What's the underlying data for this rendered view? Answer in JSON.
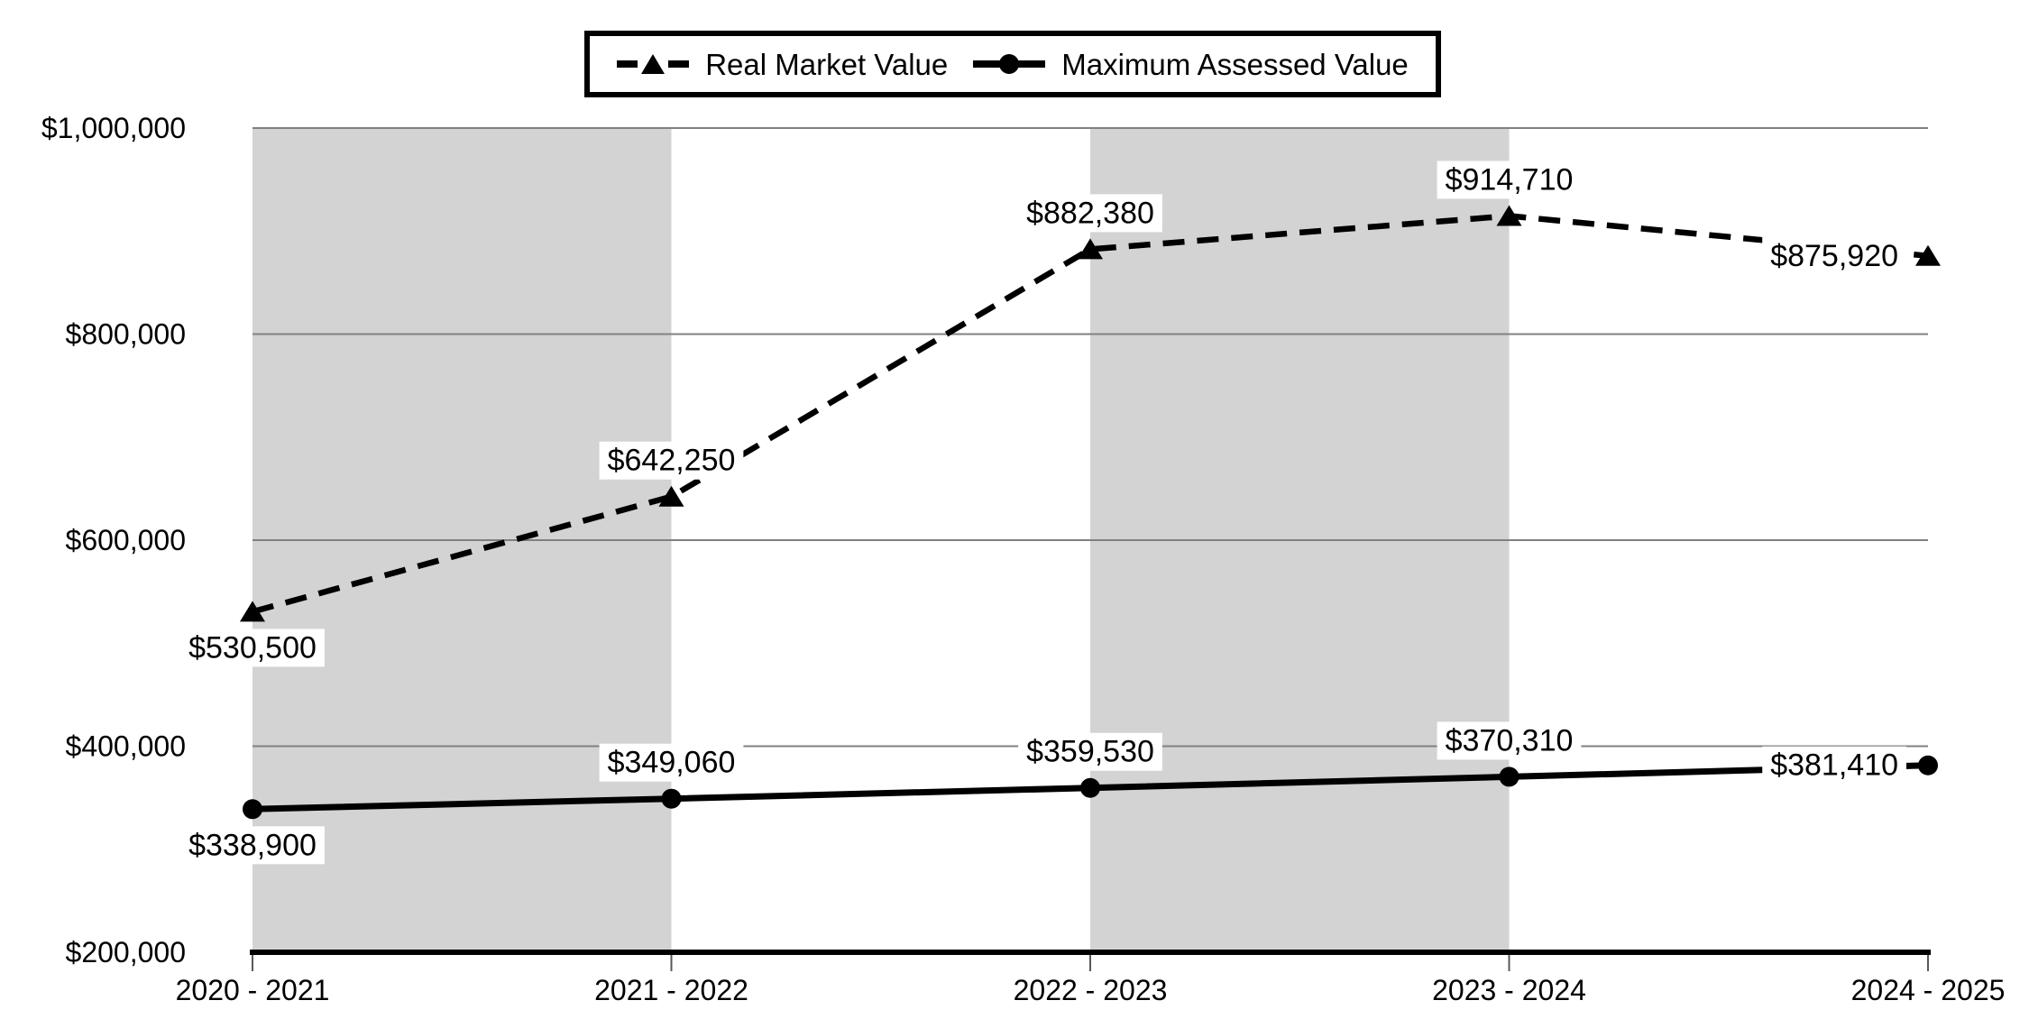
{
  "chart_data": {
    "type": "line",
    "title": "",
    "xlabel": "",
    "ylabel": "",
    "categories": [
      "2020 - 2021",
      "2021 - 2022",
      "2022 - 2023",
      "2023 - 2024",
      "2024 - 2025"
    ],
    "series": [
      {
        "name": "Real Market Value",
        "values": [
          530500,
          642250,
          882380,
          914710,
          875920
        ],
        "data_labels": [
          "$530,500",
          "$642,250",
          "$882,380",
          "$914,710",
          "$875,920"
        ],
        "label_positions": [
          "below",
          "above",
          "above",
          "above",
          "left"
        ],
        "line_style": "dashed",
        "marker": "triangle",
        "color": "#000000"
      },
      {
        "name": "Maximum Assessed Value",
        "values": [
          338900,
          349060,
          359530,
          370310,
          381410
        ],
        "data_labels": [
          "$338,900",
          "$349,060",
          "$359,530",
          "$370,310",
          "$381,410"
        ],
        "label_positions": [
          "below",
          "above",
          "above",
          "above",
          "left"
        ],
        "line_style": "solid",
        "marker": "circle",
        "color": "#000000"
      }
    ],
    "ylim": [
      200000,
      1000000
    ],
    "ytick_step": 200000,
    "ytick_labels": [
      "$200,000",
      "$400,000",
      "$600,000",
      "$800,000",
      "$1,000,000"
    ],
    "grid": true,
    "legend_position": "top-center",
    "band_categories": [
      0,
      2
    ],
    "colors": {
      "band": "#d3d3d3",
      "gridline": "#808080",
      "axis": "#000000",
      "tick": "#595959",
      "label_bg": "#ffffff",
      "text": "#000000",
      "background": "#ffffff"
    }
  }
}
